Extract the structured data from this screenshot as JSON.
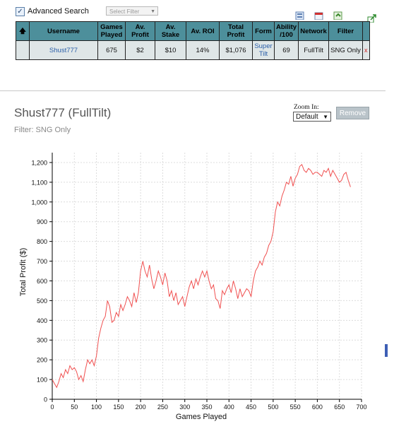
{
  "advanced_search": {
    "label": "Advanced Search",
    "checked": true
  },
  "select_filter": {
    "placeholder": "Select Filter"
  },
  "table": {
    "headers": [
      "Username",
      "Games Played",
      "Av. Profit",
      "Av. Stake",
      "Av. ROI",
      "Total Profit",
      "Form",
      "Ability /100",
      "Network",
      "Filter"
    ],
    "row": {
      "username": "Shust777",
      "games_played": "675",
      "av_profit": "$2",
      "av_stake": "$10",
      "av_roi": "14%",
      "total_profit": "$1,076",
      "form": "Super Tilt",
      "ability": "69",
      "network": "FullTilt",
      "filter": "SNG Only",
      "remove": "x"
    }
  },
  "header": {
    "player_title": "Shust777 (FullTilt)",
    "filter_label": "Filter: SNG Only"
  },
  "zoom": {
    "label": "Zoom In:",
    "value": "Default"
  },
  "remove_button": {
    "label": "Remove"
  },
  "chart_data": {
    "type": "line",
    "xlabel": "Games Played",
    "ylabel": "Total Profit ($)",
    "xlim": [
      0,
      700
    ],
    "ylim": [
      0,
      1250
    ],
    "xticks": [
      0,
      50,
      100,
      150,
      200,
      250,
      300,
      350,
      400,
      450,
      500,
      550,
      600,
      650,
      700
    ],
    "yticks": [
      0,
      100,
      200,
      300,
      400,
      500,
      600,
      700,
      800,
      900,
      1000,
      1100,
      1200
    ],
    "tick_labels_y": [
      "0",
      "100",
      "200",
      "300",
      "400",
      "500",
      "600",
      "700",
      "800",
      "900",
      "1,000",
      "1,100",
      "1,200"
    ],
    "tick_labels_x": [
      "0",
      "50",
      "100",
      "150",
      "200",
      "250",
      "300",
      "350",
      "400",
      "450",
      "500",
      "550",
      "600",
      "650",
      "700"
    ],
    "grid": true,
    "series": [
      {
        "color": "#f05050",
        "x": [
          0,
          5,
          10,
          15,
          20,
          25,
          30,
          35,
          40,
          45,
          50,
          55,
          60,
          65,
          70,
          75,
          80,
          85,
          90,
          95,
          100,
          105,
          110,
          115,
          120,
          125,
          130,
          135,
          140,
          145,
          150,
          155,
          160,
          165,
          170,
          175,
          180,
          185,
          190,
          195,
          200,
          205,
          210,
          215,
          220,
          225,
          230,
          235,
          240,
          245,
          250,
          255,
          260,
          265,
          270,
          275,
          280,
          285,
          290,
          295,
          300,
          305,
          310,
          315,
          320,
          325,
          330,
          335,
          340,
          345,
          350,
          355,
          360,
          365,
          370,
          375,
          380,
          385,
          390,
          395,
          400,
          405,
          410,
          415,
          420,
          425,
          430,
          435,
          440,
          445,
          450,
          455,
          460,
          465,
          470,
          475,
          480,
          485,
          490,
          495,
          500,
          505,
          510,
          515,
          520,
          525,
          530,
          535,
          540,
          545,
          550,
          555,
          560,
          565,
          570,
          575,
          580,
          585,
          590,
          595,
          600,
          605,
          610,
          615,
          620,
          625,
          630,
          635,
          640,
          645,
          650,
          655,
          660,
          665,
          670,
          675
        ],
        "y": [
          100,
          80,
          60,
          90,
          130,
          110,
          150,
          130,
          170,
          150,
          160,
          140,
          100,
          120,
          90,
          150,
          200,
          180,
          200,
          170,
          220,
          310,
          360,
          400,
          420,
          500,
          470,
          390,
          400,
          440,
          420,
          480,
          450,
          480,
          520,
          500,
          470,
          540,
          490,
          540,
          650,
          700,
          650,
          620,
          680,
          610,
          560,
          600,
          650,
          620,
          580,
          640,
          600,
          520,
          550,
          500,
          540,
          480,
          500,
          520,
          470,
          520,
          570,
          600,
          560,
          610,
          580,
          620,
          650,
          620,
          650,
          600,
          560,
          580,
          510,
          500,
          460,
          550,
          530,
          560,
          580,
          540,
          600,
          560,
          510,
          560,
          520,
          540,
          560,
          550,
          520,
          600,
          650,
          670,
          700,
          680,
          720,
          740,
          780,
          800,
          850,
          950,
          1000,
          980,
          1030,
          1060,
          1100,
          1090,
          1130,
          1080,
          1120,
          1140,
          1180,
          1190,
          1160,
          1150,
          1170,
          1160,
          1140,
          1150,
          1150,
          1140,
          1130,
          1160,
          1150,
          1170,
          1130,
          1160,
          1140,
          1120,
          1100,
          1110,
          1140,
          1150,
          1110,
          1076
        ]
      }
    ]
  }
}
